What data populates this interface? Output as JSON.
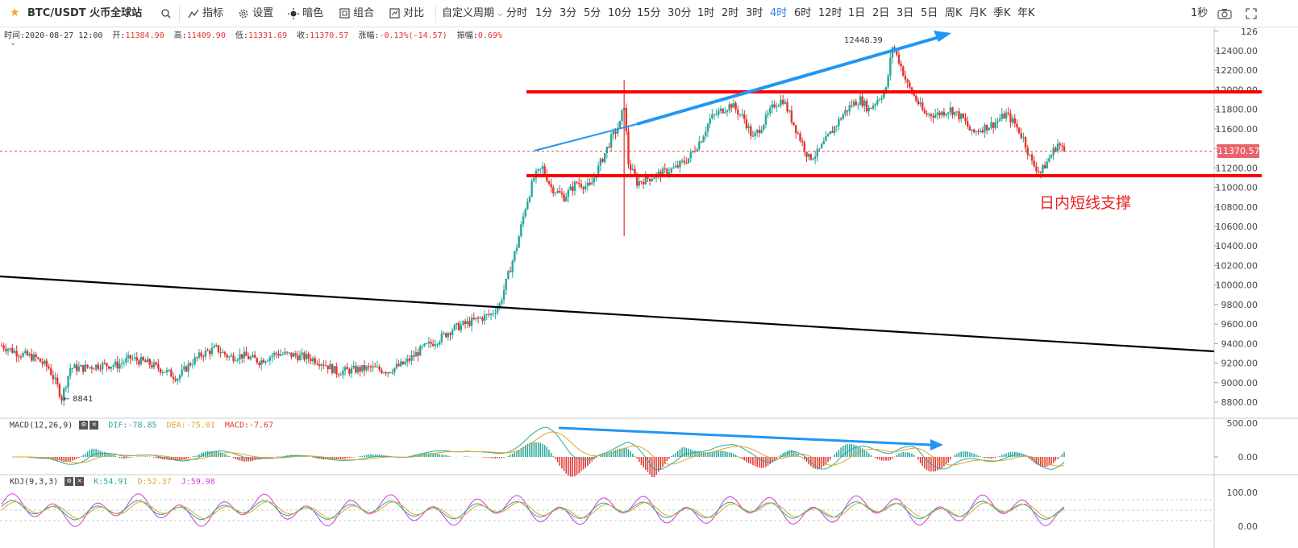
{
  "toolbar": {
    "pair": "BTC/USDT 火币全球站",
    "indicators": "指标",
    "settings": "设置",
    "dark": "暗色",
    "combo": "组合",
    "compare": "对比",
    "custom_period": "自定义周期",
    "periods": [
      "分时",
      "1分",
      "3分",
      "5分",
      "10分",
      "15分",
      "30分",
      "1时",
      "2时",
      "3时",
      "4时",
      "6时",
      "12时",
      "1日",
      "2日",
      "3日",
      "5日",
      "周K",
      "月K",
      "季K",
      "年K"
    ],
    "active_period": "4时",
    "refresh": "1秒",
    "icons": [
      "star-icon",
      "search-icon",
      "indicator-icon",
      "gear-icon",
      "sun-icon",
      "combo-icon",
      "compare-icon",
      "camera-icon",
      "fullscreen-icon"
    ]
  },
  "info": {
    "time_label": "时间:",
    "time": "2020-08-27 12:00",
    "open_label": "开:",
    "open": "11384.90",
    "high_label": "高:",
    "high": "11409.90",
    "low_label": "低:",
    "low": "11331.69",
    "close_label": "收:",
    "close": "11370.57",
    "change_label": "涨幅:",
    "change": "-0.13%(-14.57)",
    "amp_label": "振幅:",
    "amp": "0.69%"
  },
  "macd": {
    "name": "MACD(12,26,9)",
    "dif": "DIF:-78.85",
    "dea": "DEA:-75.01",
    "macd": "MACD:-7.67"
  },
  "kdj": {
    "name": "KDJ(9,3,3)",
    "k": "K:54.91",
    "d": "D:52.37",
    "j": "J:59.98"
  },
  "annotation": "日内短线支撑",
  "last_price": "11370.57",
  "colors": {
    "up": "#26a69a",
    "down": "#e3342f",
    "accent": "#2f80ed",
    "support": "#ff0000",
    "arrow": "#2196f3"
  },
  "chart_data": {
    "type": "candlestick",
    "ylim": [
      8800,
      12600
    ],
    "y_ticks": [
      "126",
      "12400.00",
      "12200.00",
      "12000.00",
      "11800.00",
      "11600.00",
      "11400.00",
      "11200.00",
      "11000.00",
      "10800.00",
      "10600.00",
      "10400.00",
      "10200.00",
      "10000.00",
      "9800.00",
      "9600.00",
      "9400.00",
      "9200.00",
      "9000.00",
      "8800.00"
    ],
    "price_path": [
      [
        0,
        9380
      ],
      [
        8,
        9300
      ],
      [
        16,
        9250
      ],
      [
        22,
        9150
      ],
      [
        26,
        8960
      ],
      [
        28,
        8841
      ],
      [
        32,
        9150
      ],
      [
        38,
        9150
      ],
      [
        46,
        9180
      ],
      [
        54,
        9180
      ],
      [
        60,
        9250
      ],
      [
        68,
        9200
      ],
      [
        76,
        9120
      ],
      [
        82,
        9050
      ],
      [
        88,
        9200
      ],
      [
        94,
        9300
      ],
      [
        100,
        9350
      ],
      [
        106,
        9260
      ],
      [
        112,
        9280
      ],
      [
        120,
        9220
      ],
      [
        128,
        9300
      ],
      [
        136,
        9280
      ],
      [
        144,
        9250
      ],
      [
        150,
        9200
      ],
      [
        156,
        9110
      ],
      [
        164,
        9130
      ],
      [
        172,
        9150
      ],
      [
        180,
        9120
      ],
      [
        188,
        9200
      ],
      [
        196,
        9350
      ],
      [
        204,
        9450
      ],
      [
        210,
        9550
      ],
      [
        216,
        9600
      ],
      [
        222,
        9650
      ],
      [
        228,
        9700
      ],
      [
        232,
        9800
      ],
      [
        236,
        10100
      ],
      [
        240,
        10400
      ],
      [
        244,
        10800
      ],
      [
        248,
        11100
      ],
      [
        252,
        11200
      ],
      [
        256,
        11000
      ],
      [
        262,
        10900
      ],
      [
        268,
        11050
      ],
      [
        274,
        11000
      ],
      [
        278,
        11200
      ],
      [
        284,
        11500
      ],
      [
        288,
        11650
      ],
      [
        290,
        11850
      ],
      [
        292,
        11250
      ],
      [
        296,
        11050
      ],
      [
        302,
        11100
      ],
      [
        308,
        11150
      ],
      [
        314,
        11200
      ],
      [
        320,
        11300
      ],
      [
        326,
        11500
      ],
      [
        330,
        11700
      ],
      [
        336,
        11800
      ],
      [
        340,
        11850
      ],
      [
        346,
        11700
      ],
      [
        350,
        11500
      ],
      [
        356,
        11700
      ],
      [
        360,
        11850
      ],
      [
        364,
        11900
      ],
      [
        368,
        11700
      ],
      [
        372,
        11500
      ],
      [
        376,
        11300
      ],
      [
        380,
        11350
      ],
      [
        386,
        11550
      ],
      [
        392,
        11750
      ],
      [
        396,
        11850
      ],
      [
        400,
        11900
      ],
      [
        404,
        11800
      ],
      [
        408,
        11900
      ],
      [
        412,
        12000
      ],
      [
        415,
        12448
      ],
      [
        418,
        12300
      ],
      [
        422,
        12050
      ],
      [
        426,
        11900
      ],
      [
        430,
        11750
      ],
      [
        436,
        11750
      ],
      [
        442,
        11800
      ],
      [
        448,
        11700
      ],
      [
        452,
        11550
      ],
      [
        456,
        11600
      ],
      [
        462,
        11650
      ],
      [
        468,
        11750
      ],
      [
        472,
        11650
      ],
      [
        476,
        11500
      ],
      [
        480,
        11250
      ],
      [
        484,
        11150
      ],
      [
        488,
        11300
      ],
      [
        492,
        11450
      ],
      [
        495,
        11370
      ]
    ],
    "price_path_x_max": 495,
    "labels": {
      "high": "12448.39",
      "low": "8841"
    },
    "macd_ticks": [
      "500.00",
      "0.00"
    ],
    "kdj_ticks": [
      "100.00",
      "0.00"
    ]
  }
}
